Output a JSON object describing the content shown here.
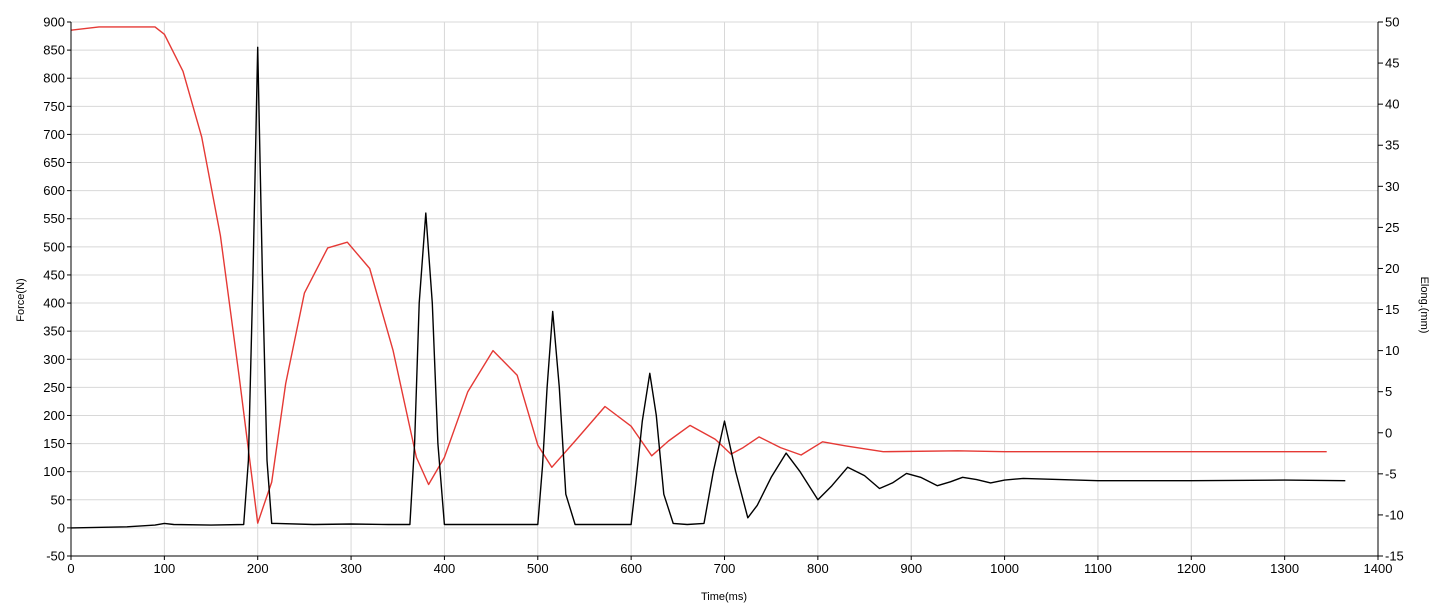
{
  "chart_data": {
    "type": "line",
    "xlabel": "Time(ms)",
    "ylabel_left": "Force(N)",
    "ylabel_right": "Elong.(mm)",
    "xlim": [
      0,
      1400
    ],
    "ylim_left": [
      -50,
      900
    ],
    "ylim_right": [
      -15,
      50
    ],
    "x_ticks": [
      0,
      100,
      200,
      300,
      400,
      500,
      600,
      700,
      800,
      900,
      1000,
      1100,
      1200,
      1300,
      1400
    ],
    "y_left_ticks": [
      -50,
      0,
      50,
      100,
      150,
      200,
      250,
      300,
      350,
      400,
      450,
      500,
      550,
      600,
      650,
      700,
      750,
      800,
      850,
      900
    ],
    "y_right_ticks": [
      -15,
      -10,
      -5,
      0,
      5,
      10,
      15,
      20,
      25,
      30,
      35,
      40,
      45,
      50
    ],
    "grid": true,
    "series": [
      {
        "axis": "left",
        "color": "#000000",
        "x": [
          0,
          60,
          90,
          100,
          110,
          150,
          185,
          190,
          195,
          200,
          205,
          210,
          215,
          220,
          260,
          300,
          340,
          363,
          368,
          373,
          380,
          387,
          393,
          400,
          440,
          480,
          500,
          505,
          510,
          516,
          523,
          530,
          540,
          560,
          600,
          605,
          612,
          620,
          627,
          635,
          645,
          660,
          678,
          688,
          700,
          712,
          725,
          735,
          750,
          766,
          781,
          800,
          815,
          832,
          850,
          866,
          880,
          895,
          910,
          928,
          942,
          955,
          970,
          985,
          1000,
          1020,
          1060,
          1100,
          1200,
          1300,
          1365
        ],
        "y": [
          0,
          2,
          5,
          8,
          6,
          5,
          6,
          120,
          450,
          855,
          450,
          120,
          8,
          8,
          6,
          7,
          6,
          6,
          150,
          400,
          560,
          400,
          150,
          6,
          6,
          6,
          6,
          110,
          250,
          385,
          250,
          60,
          6,
          6,
          6,
          80,
          190,
          275,
          200,
          60,
          8,
          6,
          8,
          100,
          190,
          100,
          18,
          40,
          90,
          133,
          100,
          50,
          75,
          108,
          93,
          70,
          80,
          97,
          90,
          75,
          82,
          90,
          86,
          80,
          85,
          88,
          86,
          84,
          84,
          85,
          84
        ]
      },
      {
        "axis": "right",
        "color": "#e53935",
        "x": [
          0,
          30,
          60,
          90,
          100,
          120,
          140,
          160,
          180,
          200,
          215,
          230,
          250,
          275,
          296,
          320,
          345,
          370,
          383,
          400,
          425,
          452,
          478,
          500,
          515,
          540,
          572,
          600,
          622,
          640,
          663,
          690,
          707,
          720,
          737,
          760,
          782,
          805,
          830,
          870,
          950,
          1000,
          1100,
          1200,
          1300,
          1345
        ],
        "y": [
          49,
          49.4,
          49.4,
          49.4,
          48.5,
          44,
          36,
          24,
          7,
          -11,
          -6,
          6,
          17,
          22.5,
          23.2,
          20,
          10,
          -3,
          -6.3,
          -3,
          5,
          10,
          7,
          -1.5,
          -4.2,
          -1,
          3.2,
          0.8,
          -2.8,
          -1,
          0.9,
          -0.8,
          -2.6,
          -1.8,
          -0.5,
          -1.8,
          -2.7,
          -1.1,
          -1.6,
          -2.3,
          -2.2,
          -2.3,
          -2.3,
          -2.3,
          -2.3,
          -2.3
        ]
      }
    ]
  }
}
